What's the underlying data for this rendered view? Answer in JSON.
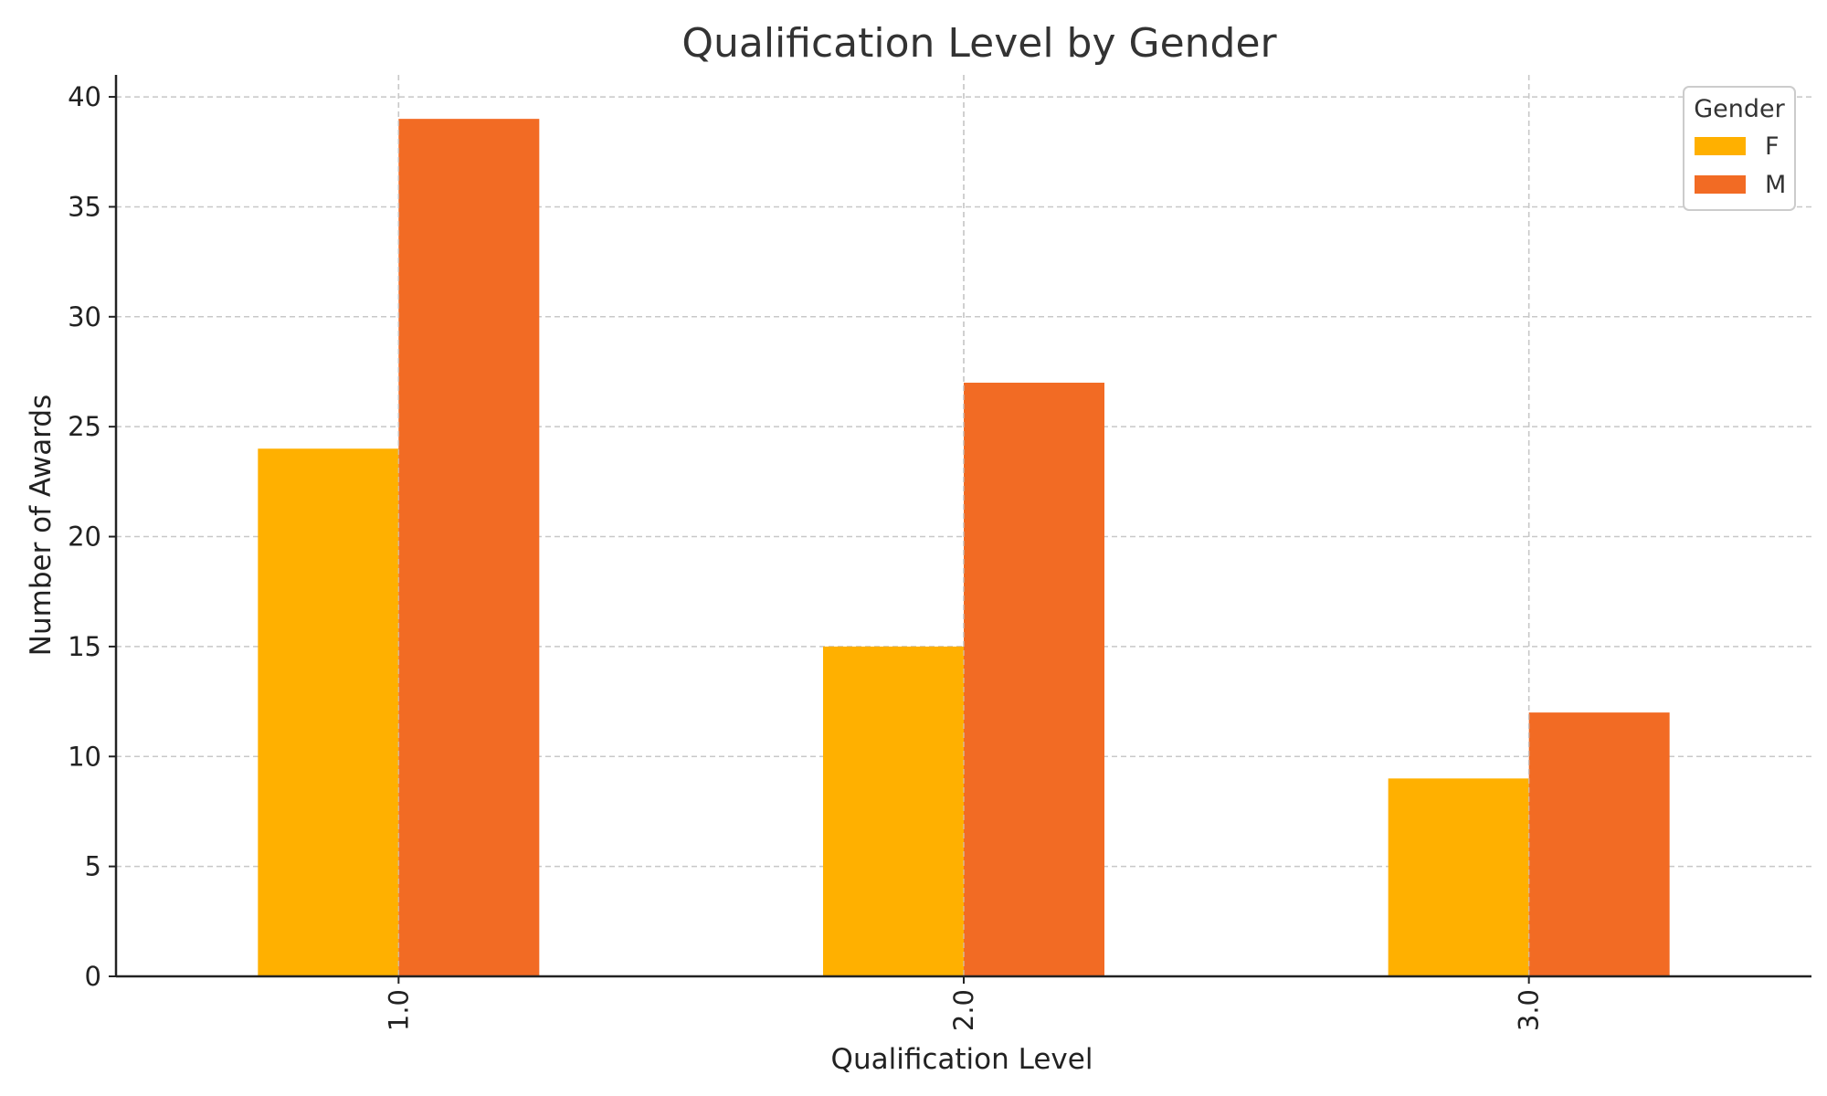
{
  "chart_data": {
    "type": "bar",
    "title": "Qualification Level by Gender",
    "xlabel": "Qualification Level",
    "ylabel": "Number of Awards",
    "categories": [
      "1.0",
      "2.0",
      "3.0"
    ],
    "series": [
      {
        "name": "F",
        "values": [
          24,
          15,
          9
        ],
        "color": "#FFB000"
      },
      {
        "name": "M",
        "values": [
          39,
          27,
          12
        ],
        "color": "#F26B24"
      }
    ],
    "ylim": [
      0,
      41
    ],
    "yticks": [
      0,
      5,
      10,
      15,
      20,
      25,
      30,
      35,
      40
    ],
    "grid": true,
    "legend": {
      "title": "Gender",
      "placement": "top-right"
    },
    "xtick_rotation": "vertical"
  }
}
